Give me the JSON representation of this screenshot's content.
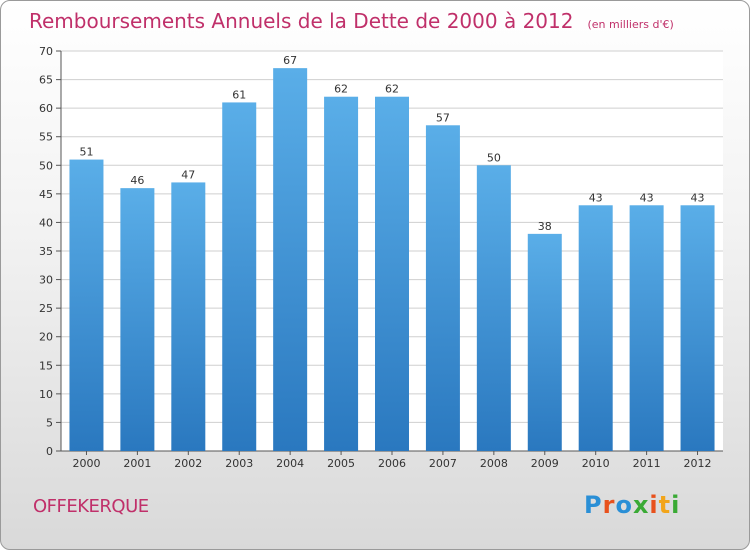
{
  "chart_data": {
    "type": "bar",
    "title": "Remboursements Annuels de la Dette de 2000 à 2012",
    "subtitle": "(en milliers d'€)",
    "categories": [
      "2000",
      "2001",
      "2002",
      "2003",
      "2004",
      "2005",
      "2006",
      "2007",
      "2008",
      "2009",
      "2010",
      "2011",
      "2012"
    ],
    "values": [
      51,
      46,
      47,
      61,
      67,
      62,
      62,
      57,
      50,
      38,
      43,
      43,
      43
    ],
    "ylim": [
      0,
      70
    ],
    "yticks": [
      0,
      5,
      10,
      15,
      20,
      25,
      30,
      35,
      40,
      45,
      50,
      55,
      60,
      65,
      70
    ],
    "grid": true,
    "colors": {
      "bar_top": "#5aaee8",
      "bar_bottom": "#2a78bf",
      "grid": "#cfcfcf",
      "title": "#c0306a"
    }
  },
  "footer": {
    "commune": "OFFEKERQUE",
    "logo": [
      "P",
      "r",
      "o",
      "x",
      "i",
      "t",
      "i"
    ],
    "logo_colors": [
      "#2a8fd6",
      "#e8511c",
      "#2a8fd6",
      "#3aaa35",
      "#e8511c",
      "#f2a51a",
      "#3aaa35"
    ]
  }
}
